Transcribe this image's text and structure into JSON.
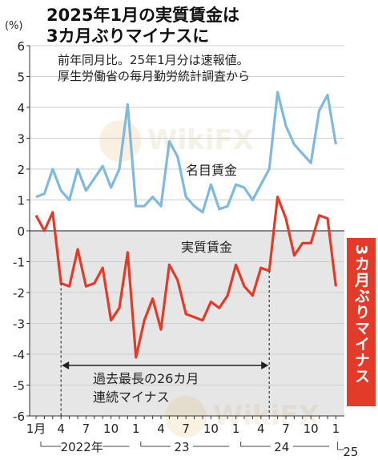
{
  "title_line1": "2025年1月の実質賃金は",
  "title_line2": "3カ月ぶりマイナスに",
  "subtitle_line1": "前年同月比。25年1月分は速報値。",
  "subtitle_line2": "厚生労働省の毎月勤労統計調査から",
  "y_unit": "(%)",
  "negative_callout": "3カ月ぶりマイナス",
  "bracket_label_line1": "過去最長の26カ月",
  "bracket_label_line2": "連続マイナス",
  "watermark_text": "WikiFX",
  "colors": {
    "nominal": "#7fb9e0",
    "real": "#e23b2a",
    "callout_bg": "#e23b2a",
    "negative_shade": "#e6e6e6",
    "axis": "#333333",
    "title": "#111111"
  },
  "chart_data": {
    "type": "line",
    "ylim": [
      -6,
      6
    ],
    "yticks": [
      -6,
      -5,
      -4,
      -3,
      -2,
      -1,
      0,
      1,
      2,
      3,
      4,
      5,
      6
    ],
    "x_tick_labels": [
      "1月",
      "4",
      "7",
      "10",
      "1",
      "4",
      "7",
      "10",
      "1",
      "4",
      "7",
      "10",
      "1"
    ],
    "x_tick_month_index": [
      0,
      3,
      6,
      9,
      12,
      15,
      18,
      21,
      24,
      27,
      30,
      33,
      36
    ],
    "year_labels": [
      {
        "label": "2022年",
        "start_index": 0,
        "end_index": 11
      },
      {
        "label": "23",
        "start_index": 12,
        "end_index": 23
      },
      {
        "label": "24",
        "start_index": 24,
        "end_index": 35
      },
      {
        "label": "25",
        "start_index": 36,
        "end_index": 36
      }
    ],
    "series": [
      {
        "name": "名目賃金",
        "values": [
          1.1,
          1.2,
          2.0,
          1.3,
          1.0,
          2.0,
          1.3,
          1.7,
          2.1,
          1.4,
          2.0,
          4.1,
          0.8,
          0.8,
          1.1,
          0.8,
          2.9,
          2.4,
          1.1,
          0.8,
          0.6,
          1.5,
          0.7,
          0.8,
          1.5,
          1.4,
          1.0,
          1.5,
          2.0,
          4.5,
          3.4,
          2.8,
          2.5,
          2.2,
          3.9,
          4.4,
          2.8
        ]
      },
      {
        "name": "実質賃金",
        "values": [
          0.5,
          0.0,
          0.6,
          -1.7,
          -1.8,
          -0.6,
          -1.8,
          -1.7,
          -1.2,
          -2.9,
          -2.5,
          -0.7,
          -4.1,
          -2.9,
          -2.2,
          -3.2,
          -1.1,
          -1.6,
          -2.7,
          -2.8,
          -2.9,
          -2.3,
          -2.5,
          -2.1,
          -1.1,
          -1.8,
          -2.1,
          -1.2,
          -1.3,
          1.1,
          0.4,
          -0.8,
          -0.4,
          -0.4,
          0.5,
          0.4,
          -1.8
        ]
      }
    ]
  }
}
